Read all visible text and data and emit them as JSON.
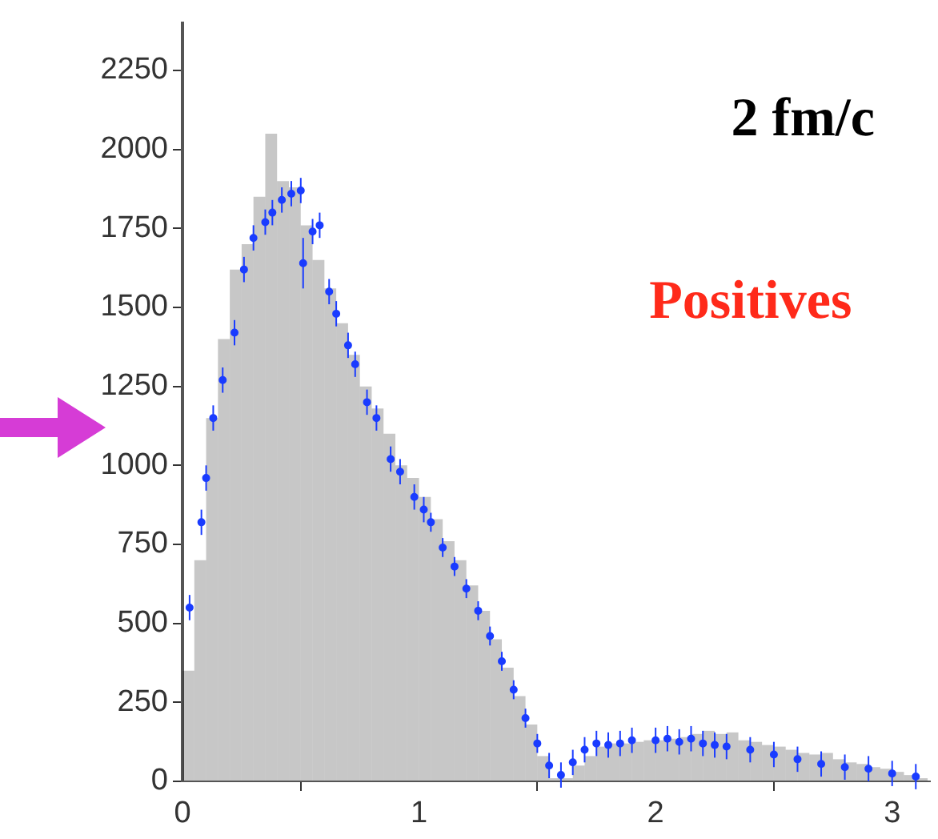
{
  "chart_data": {
    "type": "histogram",
    "xlim": [
      0,
      3.16
    ],
    "ylim": [
      0,
      2400
    ],
    "xticks": [
      0,
      1,
      2,
      3
    ],
    "yticks": [
      0,
      250,
      500,
      750,
      1000,
      1250,
      1500,
      1750,
      2000,
      2250
    ],
    "grid": false,
    "legend": false,
    "bins": [
      0,
      0.05,
      0.1,
      0.15,
      0.2,
      0.25,
      0.3,
      0.35,
      0.4,
      0.45,
      0.5,
      0.55,
      0.6,
      0.65,
      0.7,
      0.75,
      0.8,
      0.85,
      0.9,
      0.95,
      1,
      1.05,
      1.1,
      1.15,
      1.2,
      1.25,
      1.3,
      1.35,
      1.4,
      1.45,
      1.5,
      1.55,
      1.6,
      1.65,
      1.7,
      1.75,
      1.8,
      1.85,
      1.9,
      1.95,
      2,
      2.05,
      2.1,
      2.15,
      2.2,
      2.25,
      2.3,
      2.35,
      2.4,
      2.45,
      2.5,
      2.55,
      2.6,
      2.65,
      2.7,
      2.75,
      2.8,
      2.85,
      2.9,
      2.95,
      3,
      3.05,
      3.1,
      3.15
    ],
    "series": [
      {
        "color": "#000000",
        "values": [
          350,
          700,
          1150,
          1400,
          1620,
          1700,
          1850,
          2050,
          1900,
          1880,
          1760,
          1650,
          1560,
          1450,
          1350,
          1250,
          1180,
          1100,
          1000,
          960,
          900,
          830,
          760,
          700,
          620,
          540,
          450,
          360,
          270,
          180,
          80,
          10,
          10,
          50,
          80,
          110,
          120,
          120,
          125,
          130,
          130,
          135,
          140,
          150,
          160,
          150,
          155,
          130,
          125,
          115,
          110,
          100,
          90,
          85,
          90,
          70,
          60,
          55,
          45,
          40,
          30,
          20,
          10
        ]
      },
      {
        "type": "scatter",
        "color": "#1a3cff",
        "marker": "circle",
        "x": [
          0.03,
          0.08,
          0.1,
          0.13,
          0.17,
          0.22,
          0.26,
          0.3,
          0.35,
          0.38,
          0.42,
          0.46,
          0.5,
          0.51,
          0.55,
          0.58,
          0.62,
          0.65,
          0.7,
          0.73,
          0.78,
          0.82,
          0.88,
          0.92,
          0.98,
          1.02,
          1.05,
          1.1,
          1.15,
          1.2,
          1.25,
          1.3,
          1.35,
          1.4,
          1.45,
          1.5,
          1.55,
          1.6,
          1.65,
          1.7,
          1.75,
          1.8,
          1.85,
          1.9,
          2,
          2.05,
          2.1,
          2.15,
          2.2,
          2.25,
          2.3,
          2.4,
          2.5,
          2.6,
          2.7,
          2.8,
          2.9,
          3,
          3.1
        ],
        "values": [
          550,
          820,
          960,
          1150,
          1270,
          1420,
          1620,
          1720,
          1770,
          1800,
          1840,
          1860,
          1870,
          1640,
          1740,
          1760,
          1550,
          1480,
          1380,
          1320,
          1200,
          1150,
          1020,
          980,
          900,
          860,
          820,
          740,
          680,
          610,
          540,
          460,
          380,
          290,
          200,
          120,
          50,
          20,
          60,
          100,
          120,
          115,
          120,
          130,
          130,
          135,
          125,
          135,
          120,
          115,
          110,
          100,
          85,
          70,
          55,
          45,
          40,
          25,
          15
        ],
        "errors": [
          40,
          40,
          40,
          40,
          40,
          40,
          40,
          40,
          40,
          40,
          40,
          40,
          40,
          80,
          40,
          40,
          40,
          40,
          40,
          40,
          40,
          40,
          40,
          40,
          40,
          40,
          30,
          30,
          30,
          30,
          30,
          30,
          30,
          30,
          30,
          30,
          40,
          40,
          40,
          40,
          40,
          40,
          40,
          40,
          40,
          40,
          40,
          40,
          40,
          40,
          40,
          40,
          40,
          40,
          40,
          40,
          40,
          40,
          40
        ]
      }
    ],
    "annotations": [
      "2 fm/c",
      "Positives"
    ]
  }
}
